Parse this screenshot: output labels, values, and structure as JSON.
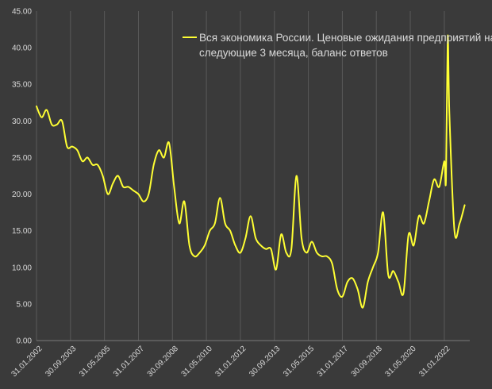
{
  "chart_data": {
    "type": "line",
    "title": "",
    "xlabel": "",
    "ylabel": "",
    "ylim": [
      0,
      45
    ],
    "yticks": [
      "0.00",
      "5.00",
      "10.00",
      "15.00",
      "20.00",
      "25.00",
      "30.00",
      "35.00",
      "40.00",
      "45.00"
    ],
    "xticks": [
      "31.01.2002",
      "30.09.2003",
      "31.05.2005",
      "31.01.2007",
      "30.09.2008",
      "31.05.2010",
      "31.01.2012",
      "30.09.2013",
      "31.05.2015",
      "31.01.2017",
      "30.09.2018",
      "31.05.2020",
      "31.01.2022"
    ],
    "grid": "vertical",
    "legend": "top-right",
    "colors": {
      "background": "#3a3a3a",
      "line": "#ffff33",
      "text": "#d9d9d9",
      "grid": "#595959"
    },
    "series": [
      {
        "name": "Вся экономика России. Ценовые ожидания предприятий на следующие 3 месяца, баланс ответов",
        "x": [
          "2002-01",
          "2002-04",
          "2002-07",
          "2002-10",
          "2003-01",
          "2003-04",
          "2003-07",
          "2003-10",
          "2004-01",
          "2004-04",
          "2004-07",
          "2004-10",
          "2005-01",
          "2005-04",
          "2005-07",
          "2005-10",
          "2006-01",
          "2006-04",
          "2006-07",
          "2006-10",
          "2007-01",
          "2007-04",
          "2007-07",
          "2007-10",
          "2008-01",
          "2008-04",
          "2008-07",
          "2008-10",
          "2009-01",
          "2009-04",
          "2009-07",
          "2009-10",
          "2010-01",
          "2010-04",
          "2010-07",
          "2010-10",
          "2011-01",
          "2011-04",
          "2011-07",
          "2011-10",
          "2012-01",
          "2012-04",
          "2012-07",
          "2012-10",
          "2013-01",
          "2013-04",
          "2013-07",
          "2013-10",
          "2014-01",
          "2014-04",
          "2014-07",
          "2014-10",
          "2015-01",
          "2015-04",
          "2015-07",
          "2015-10",
          "2016-01",
          "2016-04",
          "2016-07",
          "2016-10",
          "2017-01",
          "2017-04",
          "2017-07",
          "2017-10",
          "2018-01",
          "2018-04",
          "2018-07",
          "2018-10",
          "2019-01",
          "2019-04",
          "2019-07",
          "2019-10",
          "2020-01",
          "2020-04",
          "2020-07",
          "2020-10",
          "2021-01",
          "2021-04",
          "2021-07",
          "2021-10",
          "2022-01",
          "2022-02",
          "2022-03",
          "2022-04",
          "2022-07",
          "2022-10",
          "2023-01"
        ],
        "values": [
          32,
          30.5,
          31.5,
          29.5,
          29.5,
          30,
          26.5,
          26.5,
          26,
          24.5,
          25,
          24,
          24,
          22.5,
          20,
          21.5,
          22.5,
          21,
          21,
          20.5,
          20,
          19,
          20,
          24,
          26,
          25,
          27,
          21,
          16,
          19,
          13,
          11.5,
          12,
          13,
          15,
          16,
          19.5,
          16,
          15,
          13,
          12,
          14,
          17,
          14,
          13,
          12.5,
          12.5,
          9.7,
          14.5,
          12,
          12.5,
          22.5,
          14,
          12,
          13.5,
          12,
          11.5,
          11.5,
          10.5,
          7,
          6,
          8,
          8.5,
          7,
          4.5,
          8,
          10,
          12,
          17.5,
          9,
          9.5,
          8,
          6.5,
          14.5,
          13,
          17,
          16,
          19,
          22,
          21,
          24.5,
          22,
          41.5,
          31,
          15,
          16,
          18.5
        ]
      }
    ]
  }
}
